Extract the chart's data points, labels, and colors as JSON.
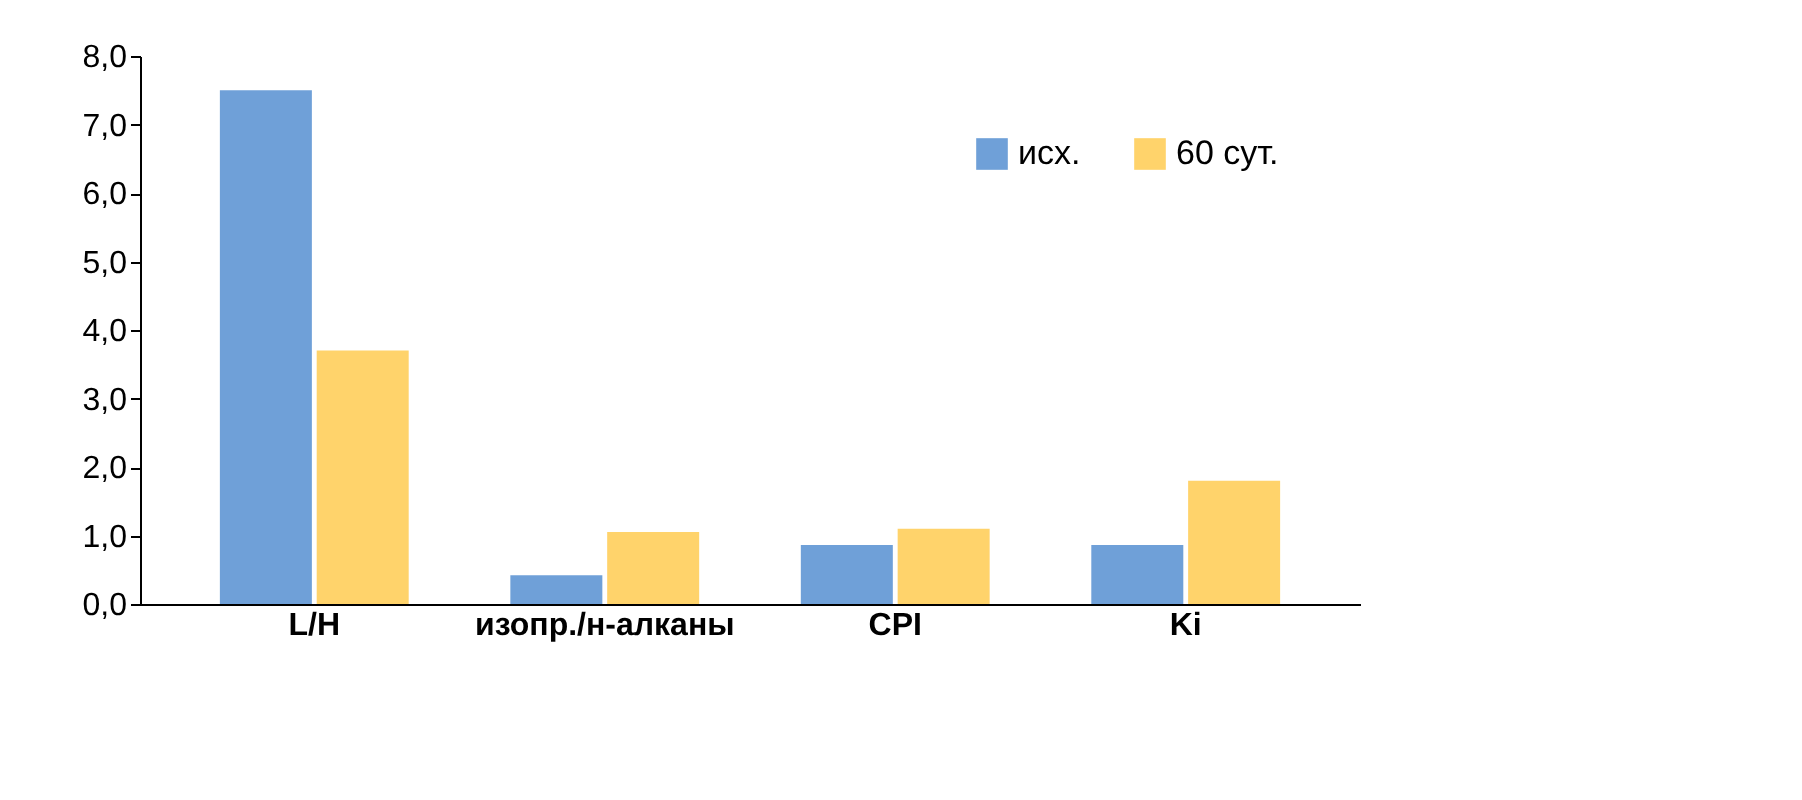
{
  "chart_data": {
    "type": "bar",
    "categories": [
      "L/H",
      "изопр./н-алканы",
      "CPI",
      "Ki"
    ],
    "series": [
      {
        "name": "исх.",
        "color": "#6fa0d8",
        "values": [
          7.5,
          0.42,
          0.86,
          0.86
        ]
      },
      {
        "name": "60 сут.",
        "color": "#ffd36b",
        "values": [
          3.7,
          1.05,
          1.1,
          1.8
        ]
      }
    ],
    "ylim": [
      0,
      8
    ],
    "yticks": [
      {
        "value": 0,
        "label": "0,0"
      },
      {
        "value": 1,
        "label": "1,0"
      },
      {
        "value": 2,
        "label": "2,0"
      },
      {
        "value": 3,
        "label": "3,0"
      },
      {
        "value": 4,
        "label": "4,0"
      },
      {
        "value": 5,
        "label": "5,0"
      },
      {
        "value": 6,
        "label": "6,0"
      },
      {
        "value": 7,
        "label": "7,0"
      },
      {
        "value": 8,
        "label": "8,0"
      }
    ],
    "grid": false,
    "legend": "top right"
  }
}
